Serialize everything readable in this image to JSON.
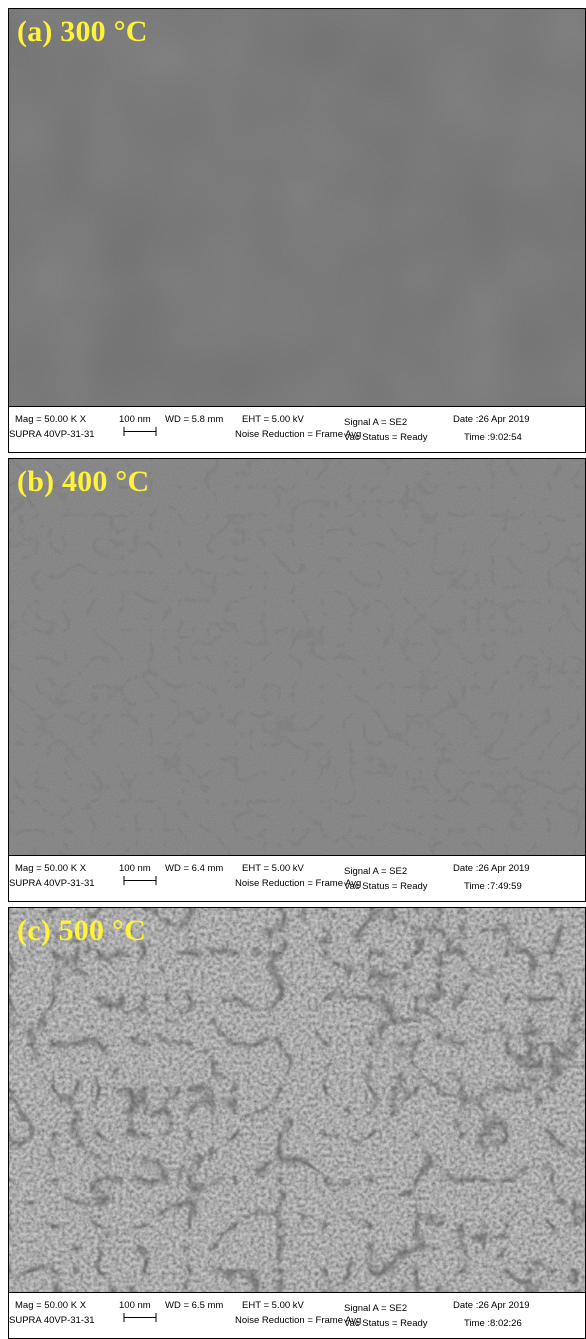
{
  "panels": [
    {
      "label": "(a) 300 °C",
      "databar": {
        "mag": "Mag =  50.00 K X",
        "scale": "100 nm",
        "wd": "WD =  5.8 mm",
        "eht": "EHT =  5.00 kV",
        "signal": "Signal A = SE2",
        "date": "Date :26 Apr 2019",
        "system": "SUPRA 40VP-31-31",
        "noise": "Noise Reduction = Frame Avg",
        "vac": "Vac Status = Ready",
        "time": "Time :9:02:54"
      }
    },
    {
      "label": "(b) 400 °C",
      "databar": {
        "mag": "Mag =  50.00 K X",
        "scale": "100 nm",
        "wd": "WD =  6.4 mm",
        "eht": "EHT =  5.00 kV",
        "signal": "Signal A = SE2",
        "date": "Date :26 Apr 2019",
        "system": "SUPRA 40VP-31-31",
        "noise": "Noise Reduction = Frame Avg",
        "vac": "Vac Status = Ready",
        "time": "Time :7:49:59"
      }
    },
    {
      "label": "(c) 500 °C",
      "databar": {
        "mag": "Mag =  50.00 K X",
        "scale": "100 nm",
        "wd": "WD =  6.5 mm",
        "eht": "EHT =  5.00 kV",
        "signal": "Signal A = SE2",
        "date": "Date :26 Apr 2019",
        "system": "SUPRA 40VP-31-31",
        "noise": "Noise Reduction = Frame Avg",
        "vac": "Vac Status = Ready",
        "time": "Time :8:02:26"
      }
    }
  ],
  "colors": {
    "label": "#fff23a",
    "surface_a": "#6e6e6e",
    "surface_b": "#7c7c7c",
    "surface_c": "#8a8a8a",
    "crack": "#3a3a3a"
  }
}
